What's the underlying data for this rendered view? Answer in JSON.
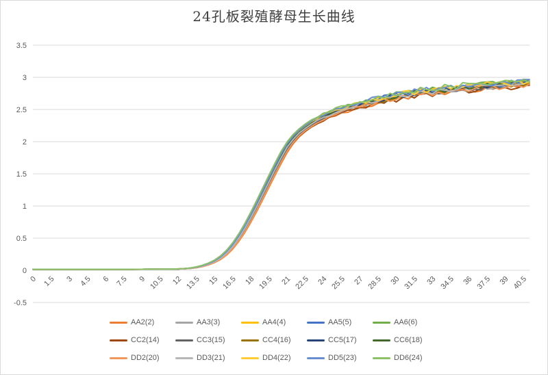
{
  "window": {
    "background": "#FFFFFF",
    "border_color": "#D9D9D9"
  },
  "chart_data": {
    "type": "line",
    "title": "24孔板裂殖酵母生长曲线",
    "title_color": "#404040",
    "axis_label_color": "#595959",
    "x_tick_labels": [
      "0",
      "1.5",
      "3",
      "4.5",
      "6",
      "7.5",
      "9",
      "10.5",
      "12",
      "13.5",
      "15",
      "16.5",
      "18",
      "19.5",
      "21",
      "22.5",
      "24",
      "25.5",
      "27",
      "28.5",
      "30",
      "31.5",
      "33",
      "34.5",
      "36",
      "37.5",
      "39",
      "40.5"
    ],
    "x_tick_step_hours": 1.5,
    "x_range": [
      0,
      41
    ],
    "x_sample_step": 0.5,
    "y_axis": {
      "min": -0.5,
      "max": 3.5,
      "step": 0.5,
      "tick_labels": [
        "-0.5",
        "0",
        "0.5",
        "1",
        "1.5",
        "2",
        "2.5",
        "3",
        "3.5"
      ]
    },
    "grid": {
      "horizontal": true,
      "vertical": false,
      "color": "#D9D9D9"
    },
    "legend": {
      "position": "bottom",
      "rows": 3,
      "columns": 5
    },
    "base_curve": [
      [
        0,
        0.015
      ],
      [
        4,
        0.015
      ],
      [
        8,
        0.015
      ],
      [
        11,
        0.018
      ],
      [
        12,
        0.02
      ],
      [
        13,
        0.03
      ],
      [
        13.5,
        0.045
      ],
      [
        14,
        0.065
      ],
      [
        14.5,
        0.095
      ],
      [
        15,
        0.135
      ],
      [
        15.5,
        0.19
      ],
      [
        16,
        0.27
      ],
      [
        16.5,
        0.37
      ],
      [
        17,
        0.5
      ],
      [
        17.5,
        0.65
      ],
      [
        18,
        0.82
      ],
      [
        18.5,
        1.0
      ],
      [
        19,
        1.19
      ],
      [
        19.5,
        1.38
      ],
      [
        20,
        1.57
      ],
      [
        20.5,
        1.75
      ],
      [
        21,
        1.92
      ],
      [
        21.5,
        2.04
      ],
      [
        22,
        2.14
      ],
      [
        22.5,
        2.21
      ],
      [
        23,
        2.28
      ],
      [
        23.5,
        2.33
      ],
      [
        24,
        2.38
      ],
      [
        24.5,
        2.42
      ],
      [
        25,
        2.46
      ],
      [
        25.5,
        2.49
      ],
      [
        26,
        2.52
      ],
      [
        26.5,
        2.55
      ],
      [
        27,
        2.58
      ],
      [
        27.5,
        2.6
      ],
      [
        28,
        2.62
      ],
      [
        28.5,
        2.64
      ],
      [
        29,
        2.66
      ],
      [
        29.5,
        2.68
      ],
      [
        30,
        2.7
      ],
      [
        31,
        2.73
      ],
      [
        32,
        2.76
      ],
      [
        33,
        2.78
      ],
      [
        34,
        2.8
      ],
      [
        35,
        2.82
      ],
      [
        36,
        2.84
      ],
      [
        37,
        2.86
      ],
      [
        38,
        2.87
      ],
      [
        39,
        2.88
      ],
      [
        40,
        2.9
      ],
      [
        41,
        2.92
      ]
    ],
    "noise": {
      "start_hour": 22,
      "ramp_per_hour": 0.006,
      "max_amplitude": 0.042
    },
    "series": [
      {
        "name": "AA2(2)",
        "color": "#ED7D31",
        "x_offset": 0.2,
        "plateau_delta": -0.035,
        "seed": 1
      },
      {
        "name": "AA3(3)",
        "color": "#A5A5A5",
        "x_offset": 0.03,
        "plateau_delta": -0.01,
        "seed": 2
      },
      {
        "name": "AA4(4)",
        "color": "#FFC000",
        "x_offset": -0.15,
        "plateau_delta": 0.01,
        "seed": 3
      },
      {
        "name": "AA5(5)",
        "color": "#4472C4",
        "x_offset": -0.1,
        "plateau_delta": 0.02,
        "seed": 4
      },
      {
        "name": "AA6(6)",
        "color": "#70AD47",
        "x_offset": -0.19,
        "plateau_delta": 0.03,
        "seed": 5
      },
      {
        "name": "CC2(14)",
        "color": "#9E480E",
        "x_offset": 0.12,
        "plateau_delta": -0.045,
        "seed": 6
      },
      {
        "name": "CC3(15)",
        "color": "#636363",
        "x_offset": 0.05,
        "plateau_delta": -0.02,
        "seed": 7
      },
      {
        "name": "CC4(16)",
        "color": "#997300",
        "x_offset": -0.05,
        "plateau_delta": 0.0,
        "seed": 8
      },
      {
        "name": "CC5(17)",
        "color": "#264478",
        "x_offset": -0.02,
        "plateau_delta": 0.005,
        "seed": 9
      },
      {
        "name": "CC6(18)",
        "color": "#43682B",
        "x_offset": -0.07,
        "plateau_delta": 0.01,
        "seed": 10
      },
      {
        "name": "DD2(20)",
        "color": "#F1975A",
        "x_offset": 0.15,
        "plateau_delta": -0.025,
        "seed": 11
      },
      {
        "name": "DD3(21)",
        "color": "#B7B7B7",
        "x_offset": 0.0,
        "plateau_delta": -0.005,
        "seed": 12
      },
      {
        "name": "DD4(22)",
        "color": "#FFCD33",
        "x_offset": -0.17,
        "plateau_delta": 0.02,
        "seed": 13
      },
      {
        "name": "DD5(23)",
        "color": "#698ED0",
        "x_offset": -0.12,
        "plateau_delta": 0.035,
        "seed": 14
      },
      {
        "name": "DD6(24)",
        "color": "#8CC168",
        "x_offset": -0.22,
        "plateau_delta": 0.045,
        "seed": 15
      }
    ]
  }
}
